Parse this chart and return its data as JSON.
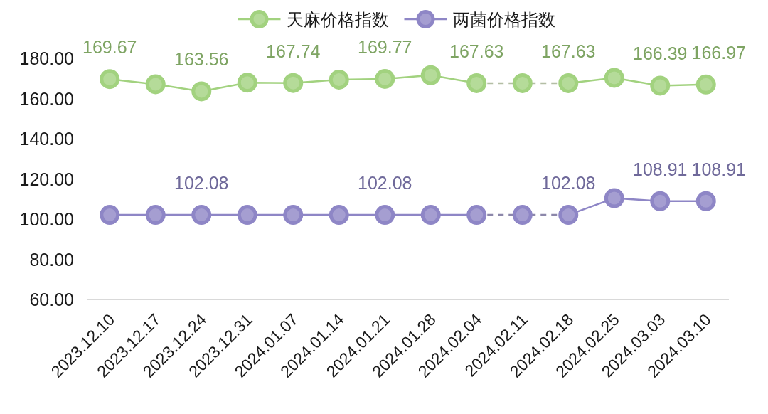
{
  "chart_data": {
    "type": "line",
    "categories": [
      "2023.12.10",
      "2023.12.17",
      "2023.12.24",
      "2023.12.31",
      "2024.01.07",
      "2024.01.14",
      "2024.01.21",
      "2024.01.28",
      "2024.02.04",
      "2024.02.11",
      "2024.02.18",
      "2024.02.25",
      "2024.03.03",
      "2024.03.10"
    ],
    "series": [
      {
        "name": "天麻价格指数",
        "color": "#a2d27f",
        "line_style": "solid",
        "marker": "circle",
        "values": [
          169.67,
          167.1,
          163.56,
          167.9,
          167.74,
          169.4,
          169.77,
          171.6,
          167.63,
          null,
          167.63,
          170.3,
          166.39,
          166.97
        ],
        "value_labels": [
          "169.67",
          null,
          "163.56",
          null,
          "167.74",
          null,
          "169.77",
          null,
          "167.63",
          null,
          "167.63",
          null,
          "166.39",
          "166.97"
        ]
      },
      {
        "color": "#b4bea5",
        "line_style": "dashed",
        "marker": "none",
        "values": [
          null,
          null,
          null,
          null,
          null,
          null,
          null,
          null,
          167.63,
          167.63,
          167.63,
          null,
          null,
          null
        ]
      },
      {
        "type": "scatter",
        "color": "#a2d27f",
        "marker": "circle",
        "values": [
          null,
          null,
          null,
          null,
          null,
          null,
          null,
          null,
          null,
          167.63,
          null,
          null,
          null,
          null
        ]
      },
      {
        "name": "两菌价格指数",
        "color": "#8e86c6",
        "line_style": "solid",
        "marker": "circle",
        "values": [
          102.08,
          102.08,
          102.08,
          102.08,
          102.08,
          102.08,
          102.08,
          102.08,
          102.08,
          null,
          102.08,
          110.4,
          108.91,
          108.91
        ],
        "value_labels": [
          null,
          null,
          "102.08",
          null,
          null,
          null,
          "102.08",
          null,
          null,
          null,
          "102.08",
          null,
          "108.91",
          "108.91"
        ]
      },
      {
        "color": "#8c87aa",
        "line_style": "dashed",
        "marker": "none",
        "values": [
          null,
          null,
          null,
          null,
          null,
          null,
          null,
          null,
          102.08,
          102.08,
          102.08,
          null,
          null,
          null
        ]
      },
      {
        "type": "scatter",
        "color": "#8e86c6",
        "marker": "circle",
        "values": [
          null,
          null,
          null,
          null,
          null,
          null,
          null,
          null,
          null,
          102.08,
          null,
          null,
          null,
          null
        ]
      }
    ],
    "ylim": [
      60,
      180
    ],
    "yticks": [
      {
        "value": 60,
        "label": "60.00"
      },
      {
        "value": 80,
        "label": "80.00"
      },
      {
        "value": 100,
        "label": "100.00"
      },
      {
        "value": 120,
        "label": "120.00"
      },
      {
        "value": 140,
        "label": "140.00"
      },
      {
        "value": 160,
        "label": "160.00"
      },
      {
        "value": 180,
        "label": "180.00"
      }
    ],
    "grid": false,
    "legend": "top"
  }
}
